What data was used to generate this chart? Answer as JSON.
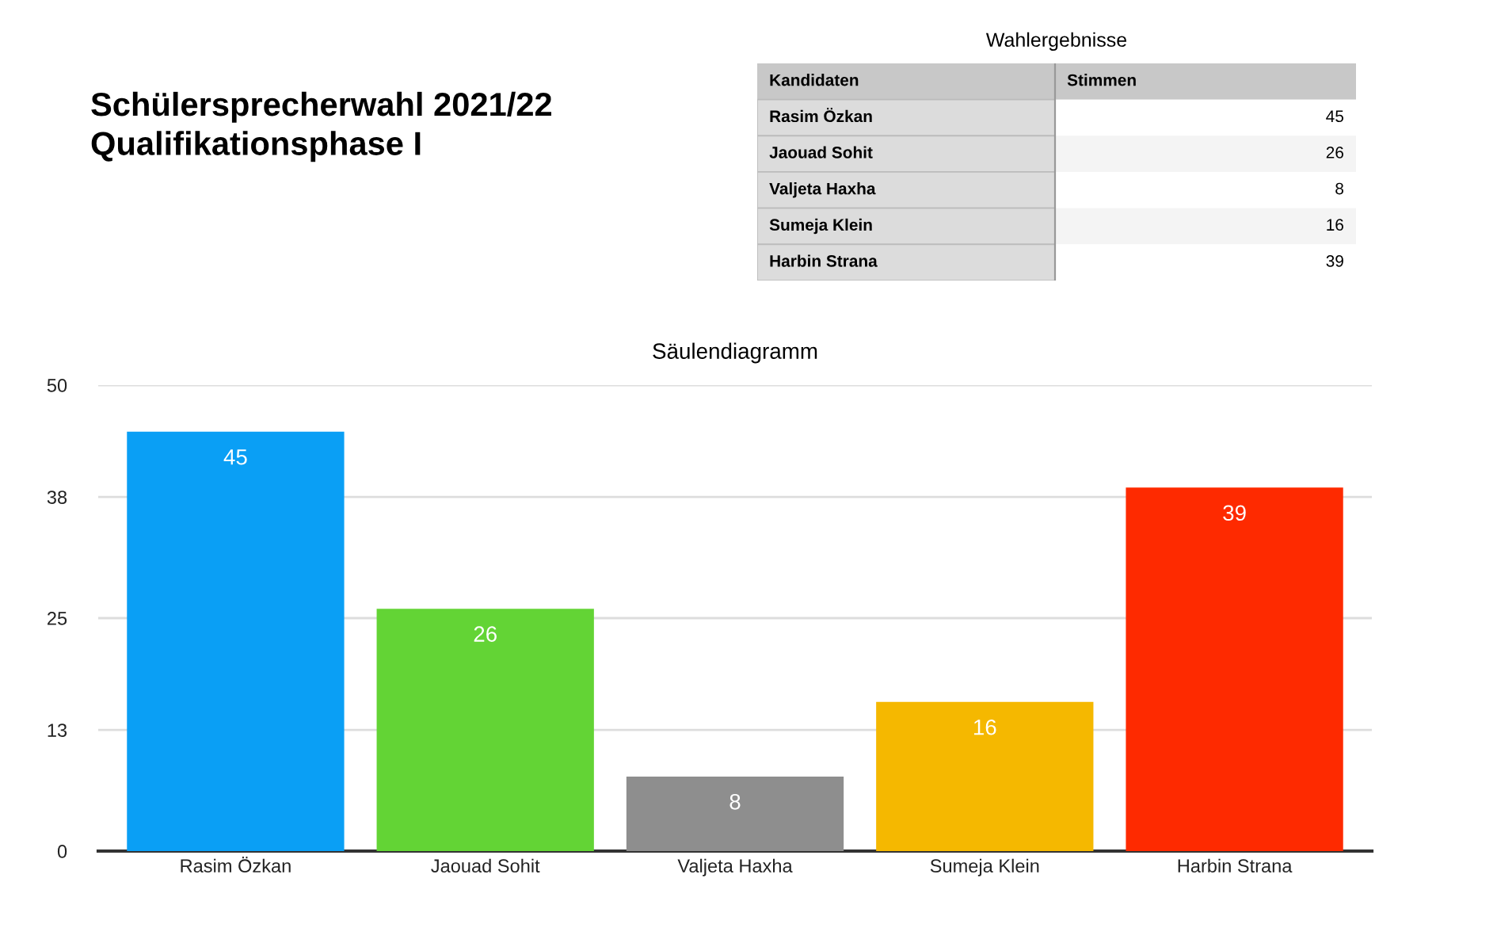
{
  "chart_data": [
    {
      "type": "other",
      "title": "Wahlergebnisse",
      "annotations": [
        "Kandidaten",
        "Stimmen"
      ],
      "categories": [
        "Rasim Özkan",
        "Jaouad Sohit",
        "Valjeta Haxha",
        "Sumeja Klein",
        "Harbin Strana"
      ],
      "values": [
        45,
        26,
        8,
        16,
        39
      ],
      "data_labels": true
    },
    {
      "type": "bar",
      "title": "Schülersprecherwahl 2021/22\nQualifikationsphase I",
      "subtitle": "Säulendiagramm",
      "categories": [
        "Rasim Özkan",
        "Jaouad Sohit",
        "Valjeta Haxha",
        "Sumeja Klein",
        "Harbin Strana"
      ],
      "values": [
        45,
        26,
        8,
        16,
        39
      ],
      "colors": [
        "#0a9ff5",
        "#63d435",
        "#8e8e8e",
        "#f5b800",
        "#fe2a00"
      ],
      "ylim": [
        0,
        50
      ],
      "yticks": [
        0,
        13,
        25,
        38,
        50
      ],
      "grid": "y",
      "data_labels": true,
      "legend": false
    }
  ]
}
